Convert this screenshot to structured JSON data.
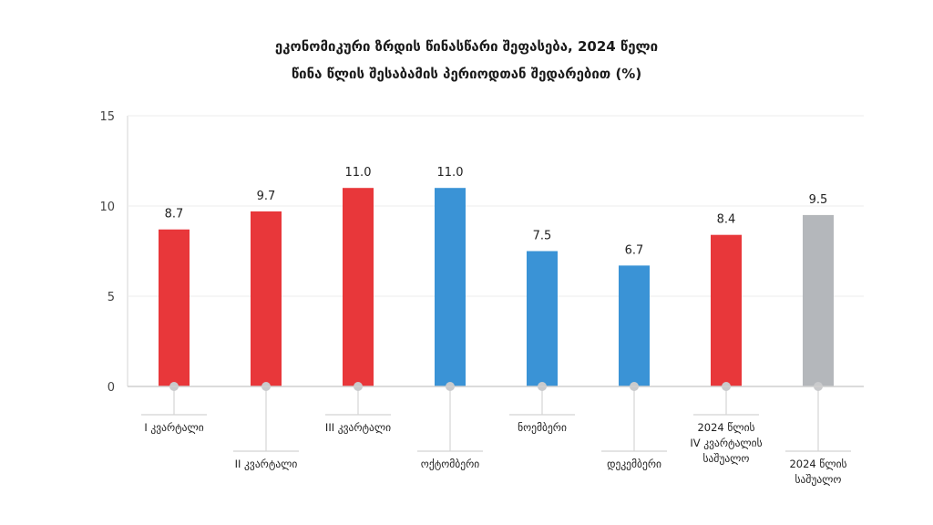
{
  "chart_data": {
    "type": "bar",
    "title": "ეკონომიკური ზრდის წინასწარი შეფასება, 2024 წელი",
    "subtitle": "წინა წლის შესაბამის პერიოდთან შედარებით (%)",
    "xlabel": "",
    "ylabel": "",
    "ylim": [
      0,
      15
    ],
    "yticks": [
      "0",
      "5",
      "10",
      "15"
    ],
    "ytick_values": [
      0,
      5,
      10,
      15
    ],
    "grid": true,
    "categories": [
      "I კვარტალი",
      "II კვარტალი",
      "III კვარტალი",
      "ოქტომბერი",
      "ნოემბერი",
      "დეკემბერი",
      "2024 წლის IV კვარტალის საშუალო",
      "2024 წლის საშუალო"
    ],
    "values": [
      8.7,
      9.7,
      11.0,
      11.0,
      7.5,
      6.7,
      8.4,
      9.5
    ],
    "value_labels": [
      "8.7",
      "9.7",
      "11.0",
      "11.0",
      "7.5",
      "6.7",
      "8.4",
      "9.5"
    ],
    "colors": [
      "#e8373a",
      "#e8373a",
      "#e8373a",
      "#3a93d6",
      "#3a93d6",
      "#3a93d6",
      "#e8373a",
      "#b4b7bb"
    ]
  }
}
